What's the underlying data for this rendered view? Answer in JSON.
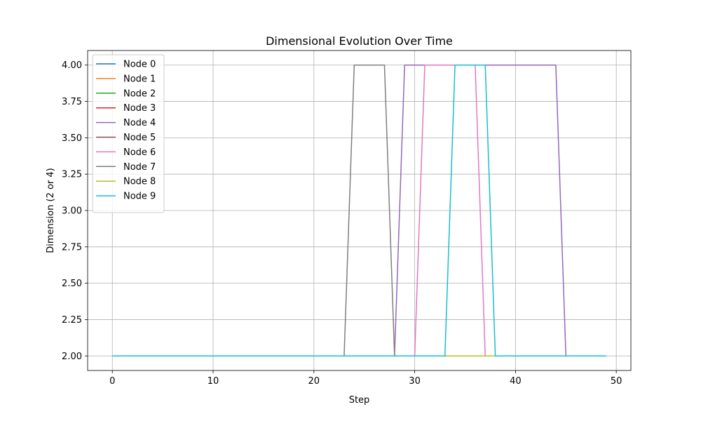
{
  "chart_data": {
    "type": "line",
    "title": "Dimensional Evolution Over Time",
    "xlabel": "Step",
    "ylabel": "Dimension (2 or 4)",
    "xlim": [
      -2.45,
      51.45
    ],
    "ylim": [
      1.9,
      4.1
    ],
    "xticks": [
      0,
      10,
      20,
      30,
      40,
      50
    ],
    "xtick_labels": [
      "0",
      "10",
      "20",
      "30",
      "40",
      "50"
    ],
    "yticks": [
      2.0,
      2.25,
      2.5,
      2.75,
      3.0,
      3.25,
      3.5,
      3.75,
      4.0
    ],
    "ytick_labels": [
      "2.00",
      "2.25",
      "2.50",
      "2.75",
      "3.00",
      "3.25",
      "3.50",
      "3.75",
      "4.00"
    ],
    "grid": true,
    "legend_position": "upper-left",
    "x_range": [
      0,
      49
    ],
    "series": [
      {
        "name": "Node 0",
        "color": "#1f77b4",
        "high_ranges": []
      },
      {
        "name": "Node 1",
        "color": "#ff7f0e",
        "high_ranges": []
      },
      {
        "name": "Node 2",
        "color": "#2ca02c",
        "high_ranges": []
      },
      {
        "name": "Node 3",
        "color": "#d62728",
        "high_ranges": []
      },
      {
        "name": "Node 4",
        "color": "#9467bd",
        "high_ranges": [
          [
            29,
            44
          ]
        ]
      },
      {
        "name": "Node 5",
        "color": "#8c564b",
        "high_ranges": []
      },
      {
        "name": "Node 6",
        "color": "#e377c2",
        "high_ranges": [
          [
            31,
            36
          ]
        ]
      },
      {
        "name": "Node 7",
        "color": "#7f7f7f",
        "high_ranges": [
          [
            24,
            27
          ]
        ]
      },
      {
        "name": "Node 8",
        "color": "#bcbd22",
        "high_ranges": []
      },
      {
        "name": "Node 9",
        "color": "#17becf",
        "high_ranges": [
          [
            34,
            37
          ]
        ]
      }
    ]
  }
}
